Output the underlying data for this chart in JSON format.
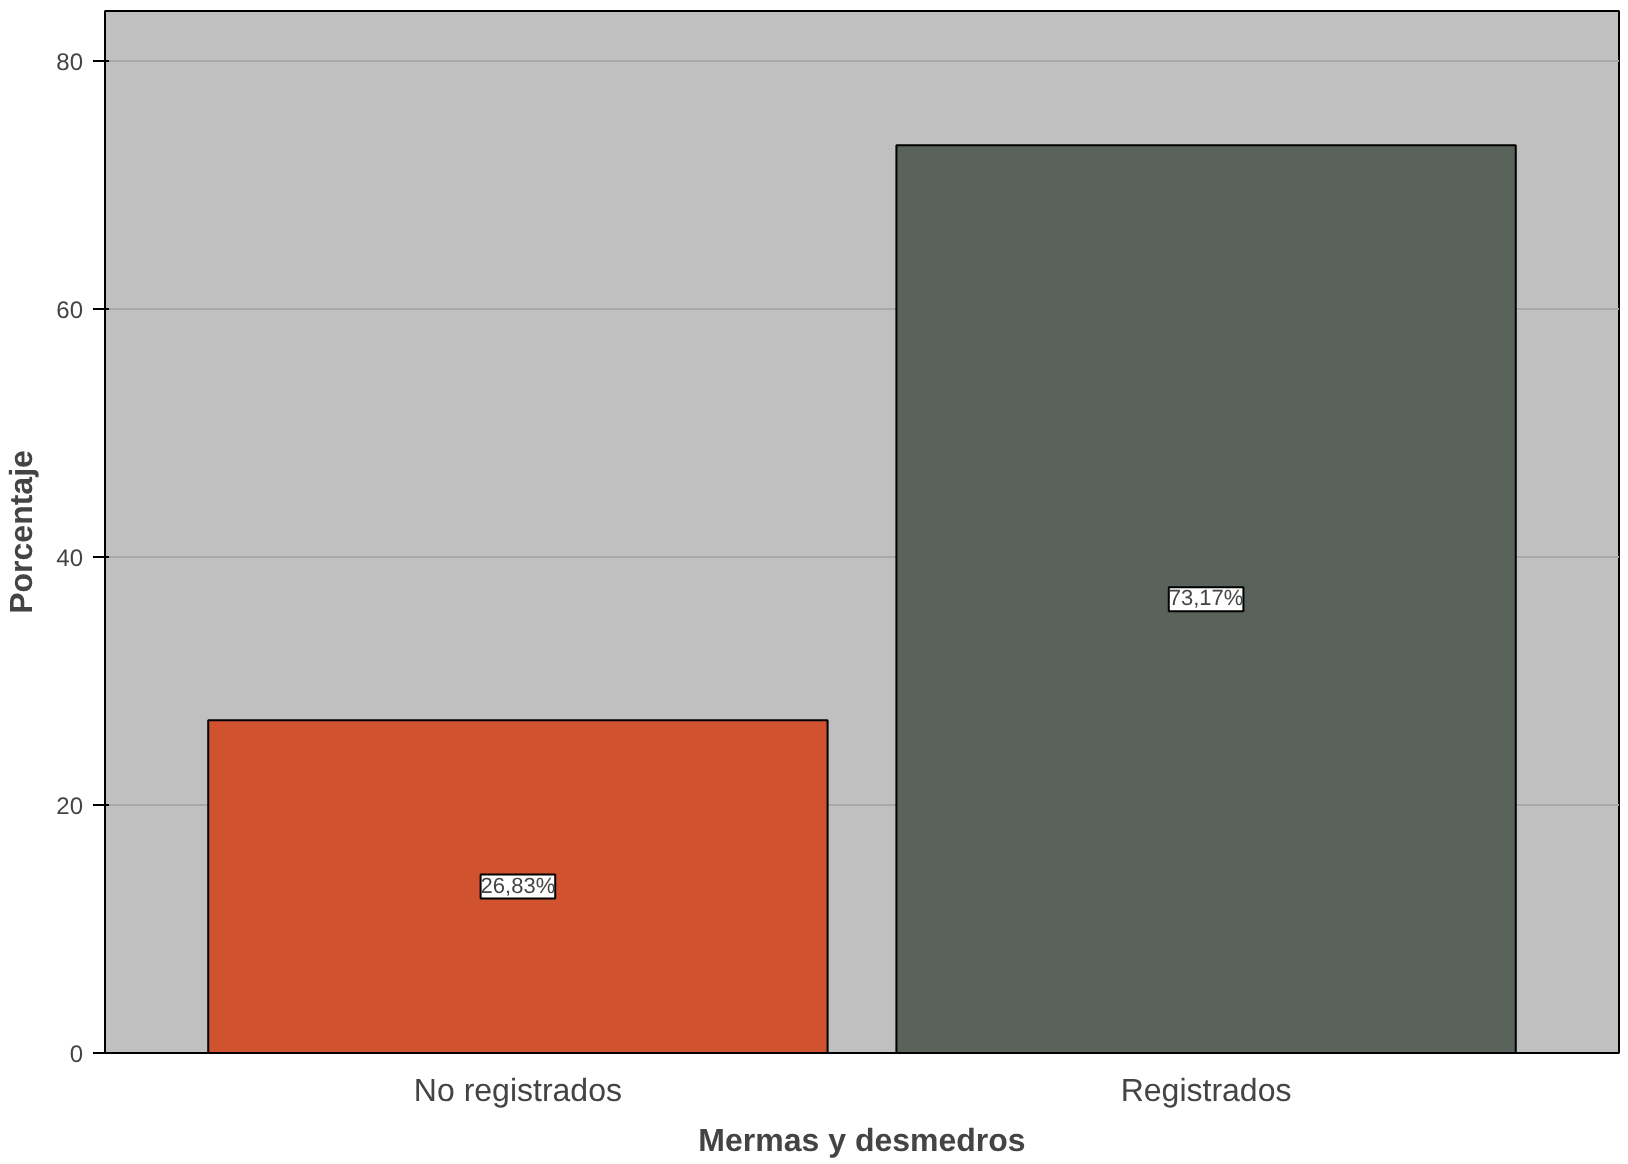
{
  "chart_data": {
    "type": "bar",
    "xlabel": "Mermas y desmedros",
    "ylabel": "Porcentaje",
    "categories": [
      "No registrados",
      "Registrados"
    ],
    "values": [
      26.83,
      73.17
    ],
    "colors": [
      "#d0522f",
      "#5a625c"
    ],
    "value_labels": [
      "26,83%",
      "73,17%"
    ],
    "ylim": [
      0,
      84
    ],
    "yticks": [
      0,
      20,
      40,
      60,
      80
    ],
    "grid": "y"
  }
}
